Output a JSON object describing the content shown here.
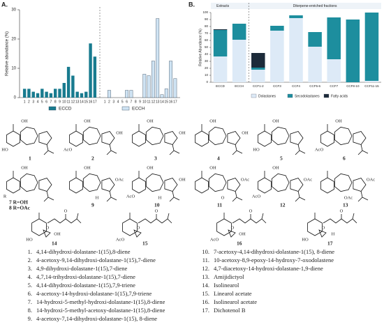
{
  "panel_a": {
    "label": "A."
  },
  "panel_b": {
    "label": "B."
  },
  "chart_data": [
    {
      "type": "bar",
      "y_label": "Relative abundance (%)",
      "categories": [
        "1",
        "2",
        "3",
        "4",
        "5",
        "6",
        "7",
        "8",
        "9",
        "10",
        "11",
        "12",
        "13",
        "14",
        "15",
        "16",
        "17"
      ],
      "series": [
        {
          "name": "ECCD",
          "color": "#187b8f",
          "values": [
            3,
            3,
            2,
            1.5,
            3,
            2,
            1.5,
            3,
            3,
            5,
            10.5,
            7.5,
            2,
            1.5,
            2,
            18.5,
            14
          ]
        },
        {
          "name": "ECCH",
          "color": "#cfe3f3",
          "values": [
            0,
            2.5,
            0,
            0,
            0,
            2.5,
            2.5,
            0,
            0,
            8,
            7.5,
            12.5,
            27,
            1,
            3,
            12.5,
            6.5
          ]
        }
      ],
      "ylim": [
        0,
        30
      ],
      "yticks": [
        0,
        10,
        20,
        30
      ]
    },
    {
      "type": "stacked-bar",
      "y_label": "Relative Abundance (%)",
      "groups": [
        "Extracts",
        "Diterpene-enriched fractions"
      ],
      "categories": [
        "ECCD",
        "ECCH",
        "CCF1-2",
        "CCF3",
        "CCF4",
        "CCF5-6",
        "CCF7",
        "CCF8-10",
        "CCF11-15"
      ],
      "series": [
        {
          "name": "Dolastanes",
          "color": "#ddeaf7",
          "values": [
            37,
            61,
            18,
            74,
            92,
            51,
            33,
            0,
            2
          ]
        },
        {
          "name": "Secodolastanes",
          "color": "#1d8e9e",
          "values": [
            38,
            23,
            3,
            7,
            4,
            21,
            60,
            90,
            98
          ]
        },
        {
          "name": "Fatty acids",
          "color": "#1c2b3a",
          "values": [
            1,
            0,
            21,
            0,
            0,
            0,
            0,
            0,
            0
          ]
        }
      ],
      "ylim": [
        0,
        100
      ],
      "yticks": [
        0,
        10,
        20,
        30,
        40,
        50,
        60,
        70,
        80,
        90,
        100
      ]
    }
  ],
  "structures": [
    {
      "labels": [
        "1"
      ],
      "groups": [
        "OH",
        "HO"
      ]
    },
    {
      "labels": [
        "2"
      ],
      "groups": [
        "OH",
        "AcO",
        "OH"
      ]
    },
    {
      "labels": [
        "3"
      ],
      "groups": [
        "OH",
        "OH"
      ]
    },
    {
      "labels": [
        "4"
      ],
      "groups": [
        "OH",
        "OH"
      ]
    },
    {
      "labels": [
        "5"
      ],
      "groups": [
        "OH",
        "HO"
      ]
    },
    {
      "labels": [
        "6"
      ],
      "groups": [
        "OH",
        "AcO"
      ]
    },
    {
      "labels": [
        "7 R=OH",
        "8 R=OAc"
      ],
      "groups": [
        "OH",
        "R"
      ]
    },
    {
      "labels": [
        "9"
      ],
      "groups": [
        "OH",
        "OAc",
        "H"
      ]
    },
    {
      "labels": [
        "10"
      ],
      "groups": [
        "OH",
        "AcO",
        "OH",
        "H"
      ]
    },
    {
      "labels": [
        "11"
      ],
      "groups": [
        "OH",
        "O",
        "OAc"
      ]
    },
    {
      "labels": [
        "12"
      ],
      "groups": [
        "OH",
        "AcO",
        "OAc"
      ]
    },
    {
      "labels": [
        "13"
      ],
      "groups": [
        "OAc",
        "OAc"
      ]
    },
    {
      "labels": [
        "14"
      ],
      "groups": [
        "HO",
        "O",
        "OH",
        "O"
      ]
    },
    {
      "labels": [
        "15"
      ],
      "groups": [
        "AcO",
        "O",
        "O"
      ]
    },
    {
      "labels": [
        "16"
      ],
      "groups": [
        "AcO",
        "O",
        "OH",
        "O"
      ]
    },
    {
      "labels": [
        "17"
      ],
      "groups": [
        "HO",
        "O",
        "H",
        "O"
      ]
    }
  ],
  "compounds": [
    {
      "number": "1.",
      "name": "4,14-dihydroxi-dolastane-1(15),8-diene"
    },
    {
      "number": "2.",
      "name": "4-acetoxy-9,14-dihydroxi-dolastane-1(15),7-diene"
    },
    {
      "number": "3.",
      "name": "4,9-dihydroxi-dolastane-1(15),7-diene"
    },
    {
      "number": "4.",
      "name": "4,7,14-trihydroxi-dolastane-1(15),7-diene"
    },
    {
      "number": "5.",
      "name": "4,14-dihydroxi-dolastane-1(15),7,9-triene"
    },
    {
      "number": "6.",
      "name": "4-acetoxy-14-hydroxi-dolastane-1(15),7,9-triene"
    },
    {
      "number": "7.",
      "name": "14-hydroxi-5-methyl-hydroxi-dolastane-1(15),8-diene"
    },
    {
      "number": "8.",
      "name": "14-hydroxi-5-methyl-acetoxy-dolastane-1(15),8-diene"
    },
    {
      "number": "9.",
      "name": "4-acetoxy-7,14-dihydroxi-dolastane-1(15), 8-diene"
    },
    {
      "number": "10.",
      "name": "7-acetoxy-4,14-dihydroxi-dolastane-1(15), 8-diene"
    },
    {
      "number": "11.",
      "name": "10-acetoxy-8,9-epoxy-14-hydroxy-7-oxodolastene"
    },
    {
      "number": "12.",
      "name": "4,7-diacetoxy-14-hydroxi-dolastane-1,9-diene"
    },
    {
      "number": "13.",
      "name": "Amijidictyol"
    },
    {
      "number": "14.",
      "name": "Isolinearol"
    },
    {
      "number": "15.",
      "name": "Linearol acetate"
    },
    {
      "number": "16.",
      "name": "Isolinearol acetate"
    },
    {
      "number": "17.",
      "name": "Dichotenol B"
    }
  ]
}
